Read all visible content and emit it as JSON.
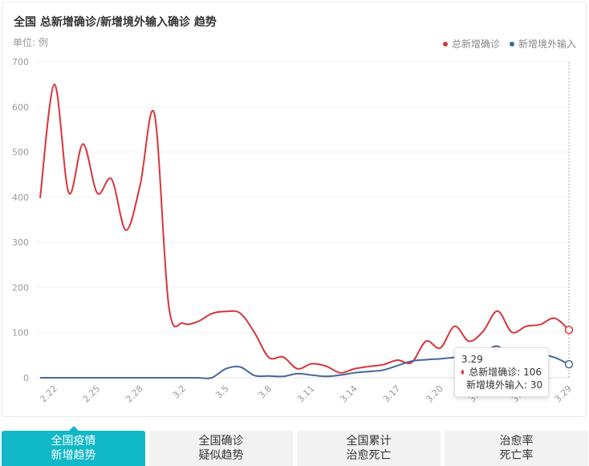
{
  "header": {
    "title": "全国 总新增确诊/新增境外输入确诊 趋势",
    "unit": "单位: 例"
  },
  "legend": [
    {
      "label": "总新增确诊",
      "color": "#d9353a"
    },
    {
      "label": "新增境外输入",
      "color": "#46679a"
    }
  ],
  "tooltip": {
    "date": "3.29",
    "rows": [
      {
        "label": "总新增确诊: 106",
        "color": "#d9353a"
      },
      {
        "label": "新增境外输入: 30",
        "color": "#46679a"
      }
    ]
  },
  "tabs": [
    {
      "line1": "全国疫情",
      "line2": "新增趋势",
      "active": true
    },
    {
      "line1": "全国确诊",
      "line2": "疑似趋势",
      "active": false
    },
    {
      "line1": "全国累计",
      "line2": "治愈死亡",
      "active": false
    },
    {
      "line1": "治愈率",
      "line2": "死亡率",
      "active": false
    }
  ],
  "chart_data": {
    "type": "line",
    "title": "全国 总新增确诊/新增境外输入确诊 趋势",
    "ylabel": "单位: 例",
    "ylim": [
      0,
      700
    ],
    "yticks": [
      0,
      100,
      200,
      300,
      400,
      500,
      600,
      700
    ],
    "categories": [
      "2.21",
      "2.22",
      "2.23",
      "2.24",
      "2.25",
      "2.26",
      "2.27",
      "2.28",
      "2.29",
      "3.1",
      "3.2",
      "3.3",
      "3.4",
      "3.5",
      "3.6",
      "3.7",
      "3.8",
      "3.9",
      "3.10",
      "3.11",
      "3.12",
      "3.13",
      "3.14",
      "3.15",
      "3.16",
      "3.17",
      "3.18",
      "3.19",
      "3.20",
      "3.21",
      "3.22",
      "3.23",
      "3.24",
      "3.25",
      "3.26",
      "3.27",
      "3.28",
      "3.29"
    ],
    "tick_labels": [
      "2.22",
      "2.25",
      "2.28",
      "3.2",
      "3.5",
      "3.8",
      "3.11",
      "3.14",
      "3.17",
      "3.20",
      "3.23",
      "3.26",
      "3.29"
    ],
    "series": [
      {
        "name": "总新增确诊",
        "color": "#d9353a",
        "values": [
          398,
          650,
          410,
          518,
          409,
          440,
          327,
          427,
          584,
          159,
          121,
          124,
          142,
          147,
          143,
          100,
          45,
          46,
          20,
          31,
          26,
          11,
          20,
          25,
          29,
          39,
          34,
          81,
          66,
          114,
          81,
          103,
          148,
          101,
          114,
          118,
          132,
          106
        ]
      },
      {
        "name": "新增境外输入",
        "color": "#46679a",
        "values": [
          0,
          0,
          0,
          0,
          0,
          0,
          0,
          0,
          0,
          0,
          0,
          0,
          0,
          20,
          24,
          5,
          4,
          3,
          9,
          6,
          3,
          6,
          11,
          14,
          17,
          27,
          37,
          40,
          42,
          45,
          45,
          55,
          70,
          42,
          50,
          52,
          45,
          30
        ]
      }
    ]
  }
}
